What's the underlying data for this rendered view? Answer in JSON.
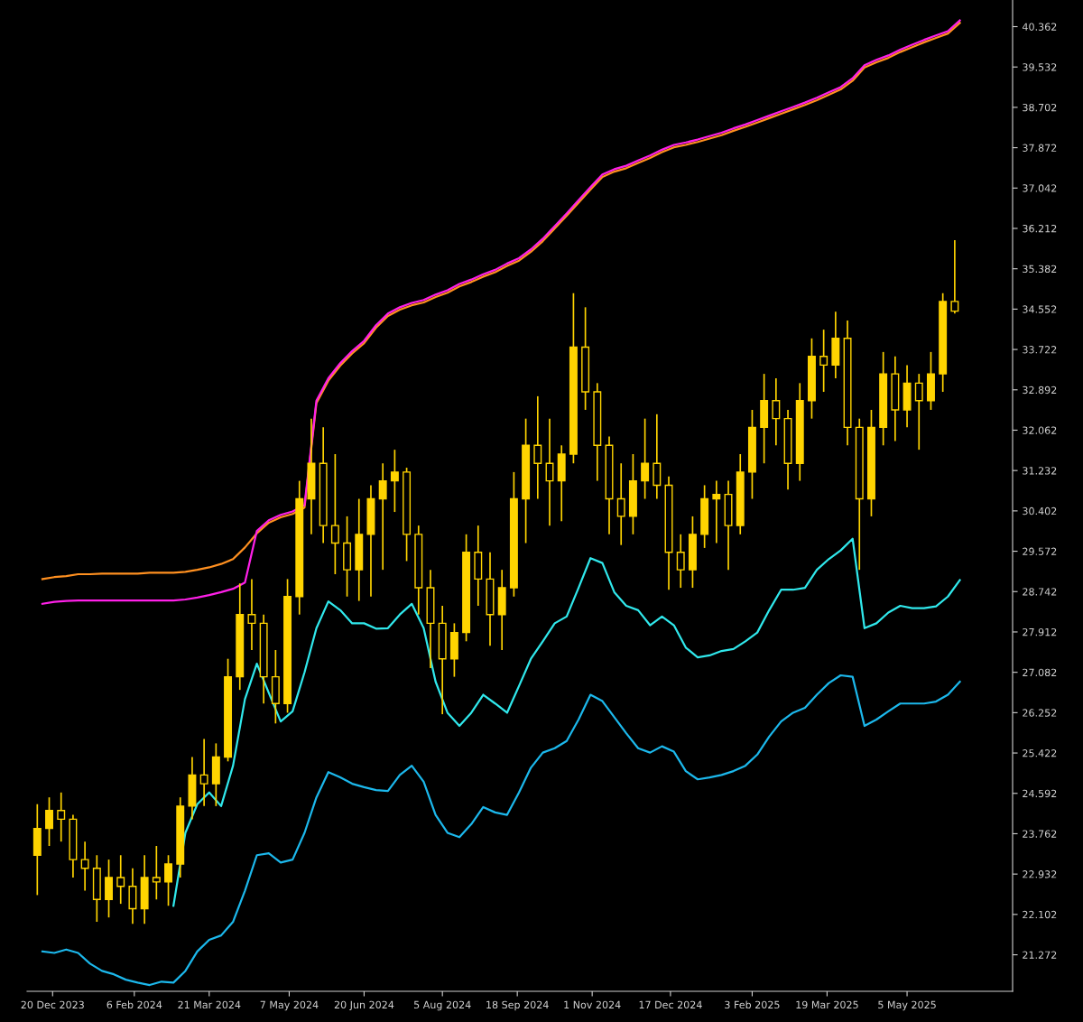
{
  "chart_data": {
    "type": "candlestick",
    "x": [
      "2023-12-14",
      "2023-12-21",
      "2023-12-28",
      "2024-01-04",
      "2024-01-11",
      "2024-01-18",
      "2024-01-25",
      "2024-02-01",
      "2024-02-08",
      "2024-02-15",
      "2024-02-22",
      "2024-02-29",
      "2024-03-07",
      "2024-03-14",
      "2024-03-21",
      "2024-03-28",
      "2024-04-04",
      "2024-04-11",
      "2024-04-18",
      "2024-04-25",
      "2024-05-02",
      "2024-05-09",
      "2024-05-16",
      "2024-05-23",
      "2024-05-30",
      "2024-06-06",
      "2024-06-13",
      "2024-06-20",
      "2024-06-27",
      "2024-07-04",
      "2024-07-11",
      "2024-07-18",
      "2024-07-25",
      "2024-08-01",
      "2024-08-08",
      "2024-08-15",
      "2024-08-22",
      "2024-08-29",
      "2024-09-05",
      "2024-09-12",
      "2024-09-19",
      "2024-09-26",
      "2024-10-03",
      "2024-10-10",
      "2024-10-17",
      "2024-10-24",
      "2024-10-31",
      "2024-11-07",
      "2024-11-14",
      "2024-11-21",
      "2024-11-28",
      "2024-12-05",
      "2024-12-12",
      "2024-12-19",
      "2024-12-26",
      "2025-01-02",
      "2025-01-09",
      "2025-01-16",
      "2025-01-23",
      "2025-01-30",
      "2025-02-06",
      "2025-02-13",
      "2025-02-20",
      "2025-02-27",
      "2025-03-06",
      "2025-03-13",
      "2025-03-20",
      "2025-03-27",
      "2025-04-03",
      "2025-04-10",
      "2025-04-17",
      "2025-04-24",
      "2025-05-01",
      "2025-05-08",
      "2025-05-15",
      "2025-05-22",
      "2025-05-29",
      "2025-06-05"
    ],
    "series": [
      {
        "type": "candlestick",
        "color": "#ffd400",
        "x": [
          "2023-12-11",
          "2023-12-18",
          "2023-12-25",
          "2024-01-01",
          "2024-01-08",
          "2024-01-15",
          "2024-01-22",
          "2024-01-29",
          "2024-02-05",
          "2024-02-12",
          "2024-02-19",
          "2024-02-26",
          "2024-03-04",
          "2024-03-11",
          "2024-03-18",
          "2024-03-25",
          "2024-04-01",
          "2024-04-08",
          "2024-04-15",
          "2024-04-22",
          "2024-04-29",
          "2024-05-06",
          "2024-05-13",
          "2024-05-20",
          "2024-05-27",
          "2024-06-03",
          "2024-06-10",
          "2024-06-17",
          "2024-06-24",
          "2024-07-01",
          "2024-07-08",
          "2024-07-15",
          "2024-07-22",
          "2024-07-29",
          "2024-08-05",
          "2024-08-12",
          "2024-08-19",
          "2024-08-26",
          "2024-09-02",
          "2024-09-09",
          "2024-09-16",
          "2024-09-23",
          "2024-09-30",
          "2024-10-07",
          "2024-10-14",
          "2024-10-21",
          "2024-10-28",
          "2024-11-04",
          "2024-11-11",
          "2024-11-18",
          "2024-11-25",
          "2024-12-02",
          "2024-12-09",
          "2024-12-16",
          "2024-12-23",
          "2024-12-30",
          "2025-01-06",
          "2025-01-13",
          "2025-01-20",
          "2025-01-27",
          "2025-02-03",
          "2025-02-10",
          "2025-02-17",
          "2025-02-24",
          "2025-03-03",
          "2025-03-10",
          "2025-03-17",
          "2025-03-24",
          "2025-03-31",
          "2025-04-07",
          "2025-04-14",
          "2025-04-21",
          "2025-04-28",
          "2025-05-05",
          "2025-05-12",
          "2025-05-19",
          "2025-05-26",
          "2025-06-02"
        ],
        "ohlc": [
          [
            23.32,
            24.37,
            22.5,
            23.87
          ],
          [
            23.87,
            24.51,
            23.51,
            24.24
          ],
          [
            24.24,
            24.61,
            23.6,
            24.06
          ],
          [
            24.06,
            24.15,
            22.86,
            23.23
          ],
          [
            23.23,
            23.6,
            22.59,
            23.05
          ],
          [
            23.05,
            23.32,
            21.95,
            22.41
          ],
          [
            22.41,
            23.23,
            22.04,
            22.86
          ],
          [
            22.86,
            23.32,
            22.32,
            22.68
          ],
          [
            22.68,
            23.05,
            21.91,
            22.22
          ],
          [
            22.22,
            23.32,
            21.91,
            22.86
          ],
          [
            22.86,
            23.51,
            22.41,
            22.77
          ],
          [
            22.77,
            23.32,
            22.28,
            23.14
          ],
          [
            23.14,
            24.51,
            22.86,
            24.33
          ],
          [
            24.33,
            25.34,
            24.06,
            24.97
          ],
          [
            24.97,
            25.71,
            24.33,
            24.79
          ],
          [
            24.79,
            25.62,
            24.33,
            25.34
          ],
          [
            25.34,
            27.36,
            25.25,
            26.99
          ],
          [
            26.99,
            28.91,
            26.72,
            28.27
          ],
          [
            28.27,
            29.0,
            27.54,
            28.09
          ],
          [
            28.09,
            28.27,
            26.44,
            26.99
          ],
          [
            26.99,
            27.54,
            26.03,
            26.44
          ],
          [
            26.44,
            29.0,
            26.25,
            28.64
          ],
          [
            28.64,
            31.02,
            28.27,
            30.65
          ],
          [
            30.65,
            32.3,
            29.92,
            31.38
          ],
          [
            31.38,
            32.12,
            29.74,
            30.1
          ],
          [
            30.1,
            31.57,
            29.1,
            29.74
          ],
          [
            29.74,
            30.29,
            28.64,
            29.19
          ],
          [
            29.19,
            30.65,
            28.55,
            29.92
          ],
          [
            29.92,
            30.93,
            28.64,
            30.65
          ],
          [
            30.65,
            31.38,
            29.19,
            31.02
          ],
          [
            31.02,
            31.66,
            30.38,
            31.2
          ],
          [
            31.2,
            31.29,
            29.37,
            29.92
          ],
          [
            29.92,
            30.1,
            28.27,
            28.82
          ],
          [
            28.82,
            29.19,
            27.17,
            28.09
          ],
          [
            28.09,
            28.45,
            26.22,
            27.36
          ],
          [
            27.36,
            28.09,
            26.99,
            27.9
          ],
          [
            27.9,
            29.92,
            27.72,
            29.55
          ],
          [
            29.55,
            30.1,
            28.45,
            29.0
          ],
          [
            29.0,
            29.55,
            27.63,
            28.27
          ],
          [
            28.27,
            29.19,
            27.54,
            28.82
          ],
          [
            28.82,
            31.2,
            28.64,
            30.65
          ],
          [
            30.65,
            32.3,
            29.74,
            31.75
          ],
          [
            31.75,
            32.76,
            30.65,
            31.38
          ],
          [
            31.38,
            32.3,
            30.1,
            31.02
          ],
          [
            31.02,
            31.75,
            30.19,
            31.57
          ],
          [
            31.57,
            34.88,
            31.38,
            33.77
          ],
          [
            33.77,
            34.59,
            32.48,
            32.85
          ],
          [
            32.85,
            33.03,
            31.02,
            31.75
          ],
          [
            31.75,
            31.93,
            29.92,
            30.65
          ],
          [
            30.65,
            31.38,
            29.7,
            30.29
          ],
          [
            30.29,
            31.57,
            29.92,
            31.02
          ],
          [
            31.02,
            32.3,
            30.65,
            31.38
          ],
          [
            31.38,
            32.39,
            30.65,
            30.93
          ],
          [
            30.93,
            31.11,
            28.78,
            29.55
          ],
          [
            29.55,
            29.92,
            28.82,
            29.19
          ],
          [
            29.19,
            30.29,
            28.82,
            29.92
          ],
          [
            29.92,
            30.93,
            29.64,
            30.65
          ],
          [
            30.65,
            31.02,
            29.74,
            30.74
          ],
          [
            30.74,
            31.02,
            29.19,
            30.1
          ],
          [
            30.1,
            31.57,
            29.92,
            31.2
          ],
          [
            31.2,
            32.48,
            30.65,
            32.12
          ],
          [
            32.12,
            33.22,
            31.38,
            32.67
          ],
          [
            32.67,
            33.13,
            31.75,
            32.3
          ],
          [
            32.3,
            32.48,
            30.84,
            31.38
          ],
          [
            31.38,
            33.03,
            31.02,
            32.67
          ],
          [
            32.67,
            33.95,
            32.3,
            33.58
          ],
          [
            33.58,
            34.13,
            32.85,
            33.4
          ],
          [
            33.4,
            34.5,
            33.13,
            33.95
          ],
          [
            33.95,
            34.32,
            31.75,
            32.12
          ],
          [
            32.12,
            32.3,
            29.19,
            30.65
          ],
          [
            30.65,
            32.48,
            30.29,
            32.12
          ],
          [
            32.12,
            33.67,
            31.75,
            33.22
          ],
          [
            33.22,
            33.58,
            31.84,
            32.48
          ],
          [
            32.48,
            33.4,
            32.12,
            33.03
          ],
          [
            33.03,
            33.22,
            31.66,
            32.67
          ],
          [
            32.67,
            33.67,
            32.48,
            33.22
          ],
          [
            33.22,
            34.88,
            32.85,
            34.71
          ],
          [
            34.71,
            35.97,
            34.46,
            34.51
          ]
        ]
      },
      {
        "type": "line",
        "color": "#ff9020",
        "values": [
          29.0,
          29.04,
          29.06,
          29.1,
          29.1,
          29.11,
          29.11,
          29.11,
          29.11,
          29.13,
          29.13,
          29.13,
          29.15,
          29.19,
          29.24,
          29.31,
          29.41,
          29.65,
          29.94,
          30.16,
          30.27,
          30.34,
          30.47,
          32.62,
          33.08,
          33.39,
          33.64,
          33.85,
          34.17,
          34.41,
          34.54,
          34.63,
          34.69,
          34.8,
          34.89,
          35.02,
          35.11,
          35.22,
          35.31,
          35.44,
          35.55,
          35.73,
          35.95,
          36.21,
          36.47,
          36.74,
          37.01,
          37.27,
          37.38,
          37.45,
          37.56,
          37.66,
          37.78,
          37.88,
          37.93,
          37.99,
          38.06,
          38.13,
          38.22,
          38.3,
          38.39,
          38.48,
          38.57,
          38.66,
          38.75,
          38.85,
          38.96,
          39.07,
          39.25,
          39.52,
          39.63,
          39.72,
          39.84,
          39.94,
          40.04,
          40.13,
          40.22,
          40.44
        ]
      },
      {
        "type": "line",
        "color": "#ff20e8",
        "values": [
          28.49,
          28.53,
          28.55,
          28.56,
          28.56,
          28.56,
          28.56,
          28.56,
          28.56,
          28.56,
          28.56,
          28.56,
          28.58,
          28.62,
          28.67,
          28.73,
          28.8,
          28.93,
          29.99,
          30.21,
          30.32,
          30.39,
          30.52,
          32.67,
          33.13,
          33.44,
          33.69,
          33.9,
          34.22,
          34.46,
          34.59,
          34.68,
          34.74,
          34.85,
          34.94,
          35.07,
          35.16,
          35.27,
          35.36,
          35.49,
          35.6,
          35.78,
          36.0,
          36.26,
          36.52,
          36.79,
          37.06,
          37.32,
          37.43,
          37.5,
          37.61,
          37.71,
          37.83,
          37.93,
          37.98,
          38.04,
          38.11,
          38.18,
          38.27,
          38.35,
          38.44,
          38.53,
          38.62,
          38.71,
          38.8,
          38.9,
          39.01,
          39.12,
          39.3,
          39.57,
          39.68,
          39.77,
          39.89,
          39.99,
          40.09,
          40.18,
          40.27,
          40.49
        ]
      },
      {
        "type": "line",
        "color": "#30e8ec",
        "values": [
          null,
          null,
          null,
          null,
          null,
          null,
          null,
          null,
          null,
          null,
          null,
          22.28,
          23.78,
          24.37,
          24.61,
          24.33,
          25.16,
          26.53,
          27.26,
          26.66,
          26.07,
          26.28,
          27.08,
          27.99,
          28.54,
          28.36,
          28.09,
          28.09,
          27.98,
          27.99,
          28.27,
          28.49,
          27.99,
          26.89,
          26.25,
          25.98,
          26.25,
          26.62,
          26.44,
          26.25,
          26.8,
          27.36,
          27.72,
          28.09,
          28.23,
          28.82,
          29.43,
          29.33,
          28.73,
          28.45,
          28.36,
          28.05,
          28.23,
          28.05,
          27.59,
          27.39,
          27.43,
          27.52,
          27.56,
          27.72,
          27.9,
          28.36,
          28.78,
          28.78,
          28.82,
          29.19,
          29.41,
          29.59,
          29.83,
          27.99,
          28.09,
          28.31,
          28.45,
          28.4,
          28.4,
          28.44,
          28.64,
          28.98
        ]
      },
      {
        "type": "line",
        "color": "#1cb8ec",
        "values": [
          21.34,
          21.31,
          21.38,
          21.31,
          21.09,
          20.94,
          20.87,
          20.76,
          20.7,
          20.65,
          20.72,
          20.7,
          20.94,
          21.34,
          21.58,
          21.67,
          21.95,
          22.59,
          23.32,
          23.36,
          23.17,
          23.23,
          23.78,
          24.51,
          25.03,
          24.92,
          24.79,
          24.72,
          24.66,
          24.64,
          24.97,
          25.16,
          24.83,
          24.15,
          23.78,
          23.69,
          23.96,
          24.31,
          24.2,
          24.15,
          24.61,
          25.12,
          25.43,
          25.52,
          25.67,
          26.11,
          26.62,
          26.49,
          26.16,
          25.83,
          25.52,
          25.43,
          25.56,
          25.45,
          25.05,
          24.88,
          24.92,
          24.97,
          25.05,
          25.16,
          25.39,
          25.76,
          26.07,
          26.25,
          26.35,
          26.62,
          26.86,
          27.02,
          26.99,
          25.98,
          26.11,
          26.28,
          26.44,
          26.44,
          26.44,
          26.48,
          26.62,
          26.89
        ]
      }
    ],
    "xlim": [
      "2023-12-05",
      "2025-07-06"
    ],
    "xticks": [
      {
        "value": "2023-12-20",
        "label": "20 Dec 2023"
      },
      {
        "value": "2024-02-06",
        "label": "6 Feb 2024"
      },
      {
        "value": "2024-03-21",
        "label": "21 Mar 2024"
      },
      {
        "value": "2024-05-07",
        "label": "7 May 2024"
      },
      {
        "value": "2024-06-20",
        "label": "20 Jun 2024"
      },
      {
        "value": "2024-08-05",
        "label": "5 Aug 2024"
      },
      {
        "value": "2024-09-18",
        "label": "18 Sep 2024"
      },
      {
        "value": "2024-11-01",
        "label": "1 Nov 2024"
      },
      {
        "value": "2024-12-17",
        "label": "17 Dec 2024"
      },
      {
        "value": "2025-02-03",
        "label": "3 Feb 2025"
      },
      {
        "value": "2025-03-19",
        "label": "19 Mar 2025"
      },
      {
        "value": "2025-05-05",
        "label": "5 May 2025"
      }
    ],
    "ylim": [
      20.52,
      40.91
    ],
    "yticks": [
      21.272,
      22.102,
      22.932,
      23.762,
      24.592,
      25.422,
      26.252,
      27.082,
      27.912,
      28.742,
      29.572,
      30.402,
      31.232,
      32.062,
      32.892,
      33.722,
      34.552,
      35.382,
      36.212,
      37.042,
      37.872,
      38.702,
      39.532,
      40.362
    ]
  }
}
